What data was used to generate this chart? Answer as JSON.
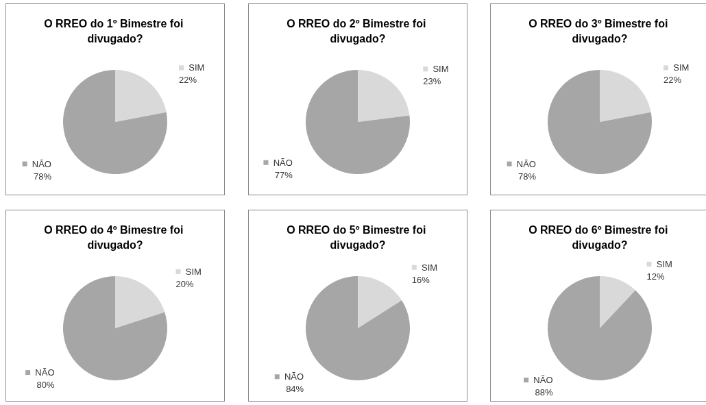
{
  "chart_data": [
    {
      "type": "pie",
      "title": "O RREO do 1º Bimestre foi divugado?",
      "categories": [
        "SIM",
        "NÃO"
      ],
      "values": [
        22,
        78
      ],
      "colors": [
        "#d9d9d9",
        "#a6a6a6"
      ],
      "value_labels": [
        "22%",
        "78%"
      ],
      "legend": "right"
    },
    {
      "type": "pie",
      "title": "O RREO do 2º Bimestre foi divugado?",
      "categories": [
        "SIM",
        "NÃO"
      ],
      "values": [
        23,
        77
      ],
      "colors": [
        "#d9d9d9",
        "#a6a6a6"
      ],
      "value_labels": [
        "23%",
        "77%"
      ],
      "legend": "right"
    },
    {
      "type": "pie",
      "title": "O RREO do 3º Bimestre foi divugado?",
      "categories": [
        "SIM",
        "NÃO"
      ],
      "values": [
        22,
        78
      ],
      "colors": [
        "#d9d9d9",
        "#a6a6a6"
      ],
      "value_labels": [
        "22%",
        "78%"
      ],
      "legend": "right"
    },
    {
      "type": "pie",
      "title": "O RREO do 4º Bimestre foi divugado?",
      "categories": [
        "SIM",
        "NÃO"
      ],
      "values": [
        20,
        80
      ],
      "colors": [
        "#d9d9d9",
        "#a6a6a6"
      ],
      "value_labels": [
        "20%",
        "80%"
      ],
      "legend": "right"
    },
    {
      "type": "pie",
      "title": "O RREO do 5º Bimestre foi divugado?",
      "categories": [
        "SIM",
        "NÃO"
      ],
      "values": [
        16,
        84
      ],
      "colors": [
        "#d9d9d9",
        "#a6a6a6"
      ],
      "value_labels": [
        "16%",
        "84%"
      ],
      "legend": "right"
    },
    {
      "type": "pie",
      "title": "O RREO do 6º Bimestre foi divugado?",
      "categories": [
        "SIM",
        "NÃO"
      ],
      "values": [
        12,
        88
      ],
      "colors": [
        "#d9d9d9",
        "#a6a6a6"
      ],
      "value_labels": [
        "12%",
        "88%"
      ],
      "legend": "right"
    }
  ]
}
